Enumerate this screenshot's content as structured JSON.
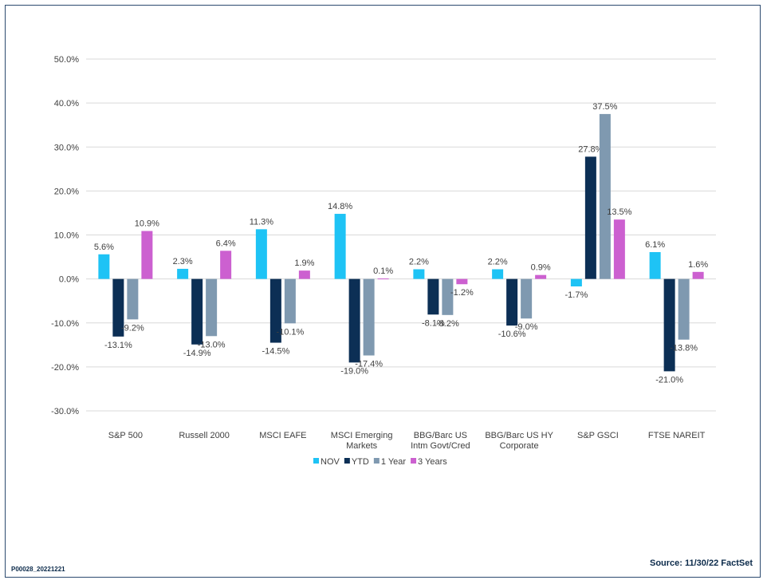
{
  "footer": {
    "code": "P00028_20221221",
    "source": "Source: 11/30/22 FactSet"
  },
  "chart_data": {
    "type": "bar",
    "categories": [
      [
        "S&P 500"
      ],
      [
        "Russell 2000"
      ],
      [
        "MSCI EAFE"
      ],
      [
        "MSCI Emerging",
        "Markets"
      ],
      [
        "BBG/Barc US",
        "Intm Govt/Cred"
      ],
      [
        "BBG/Barc US HY",
        "Corporate"
      ],
      [
        "S&P GSCI"
      ],
      [
        "FTSE NAREIT"
      ]
    ],
    "series": [
      {
        "name": "NOV",
        "color": "#1ec3f5",
        "values": [
          5.6,
          2.3,
          11.3,
          14.8,
          2.2,
          2.2,
          -1.7,
          6.1
        ]
      },
      {
        "name": "YTD",
        "color": "#0c2f55",
        "values": [
          -13.1,
          -14.9,
          -14.5,
          -19.0,
          -8.1,
          -10.6,
          27.8,
          -21.0
        ]
      },
      {
        "name": "1 Year",
        "color": "#7f99b0",
        "values": [
          -9.2,
          -13.0,
          -10.1,
          -17.4,
          -8.2,
          -9.0,
          37.5,
          -13.8
        ]
      },
      {
        "name": "3 Years",
        "color": "#cc60d0",
        "values": [
          10.9,
          6.4,
          1.9,
          0.1,
          -1.2,
          0.9,
          13.5,
          1.6
        ]
      }
    ],
    "ylim": [
      -30,
      50
    ],
    "yticks": [
      "-30.0%",
      "-20.0%",
      "-10.0%",
      "0.0%",
      "10.0%",
      "20.0%",
      "30.0%",
      "40.0%",
      "50.0%"
    ],
    "grid": true,
    "legend": "bottom",
    "value_format": "percent-1dp"
  }
}
